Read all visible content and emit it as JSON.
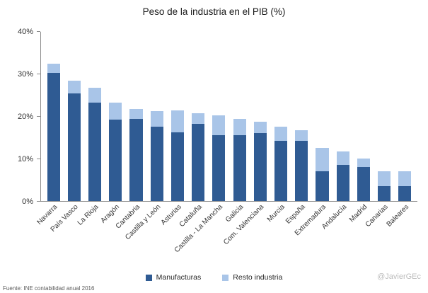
{
  "chart_data": {
    "type": "bar",
    "stacked": true,
    "title": "Peso de la industria en el PIB (%)",
    "categories": [
      "Navarra",
      "País Vasco",
      "La Rioja",
      "Aragón",
      "Cantabria",
      "Castilla y León",
      "Asturias",
      "Cataluña",
      "Castilla - La Mancha",
      "Galicia",
      "Com. Valenciana",
      "Murcia",
      "España",
      "Extremadura",
      "Andalucía",
      "Madrid",
      "Canarias",
      "Baleares"
    ],
    "series": [
      {
        "name": "Manufacturas",
        "color": "#2F5B93",
        "values": [
          30.3,
          25.5,
          23.2,
          19.2,
          19.5,
          17.5,
          16.3,
          18.2,
          15.5,
          15.5,
          16.0,
          14.3,
          14.2,
          7.0,
          8.5,
          8.0,
          3.5,
          3.5
        ]
      },
      {
        "name": "Resto industria",
        "color": "#A9C5E8",
        "values": [
          2.2,
          3.0,
          3.5,
          4.0,
          2.2,
          3.8,
          5.2,
          2.5,
          4.8,
          4.0,
          2.8,
          3.2,
          2.6,
          5.5,
          3.2,
          2.0,
          3.5,
          3.5
        ]
      }
    ],
    "ylim": [
      0,
      40
    ],
    "yticks": [
      {
        "value": 0,
        "label": "0%"
      },
      {
        "value": 10,
        "label": "10%"
      },
      {
        "value": 20,
        "label": "20%"
      },
      {
        "value": 30,
        "label": "30%"
      },
      {
        "value": 40,
        "label": "40%"
      }
    ],
    "grid": false,
    "legend_position": "bottom",
    "highlight": {
      "category": "España",
      "series": "Manufacturas",
      "style": "hatched"
    }
  },
  "footer": {
    "source": "Fuente: INE contabilidad anual 2016",
    "credit": "@JavierGEc"
  }
}
